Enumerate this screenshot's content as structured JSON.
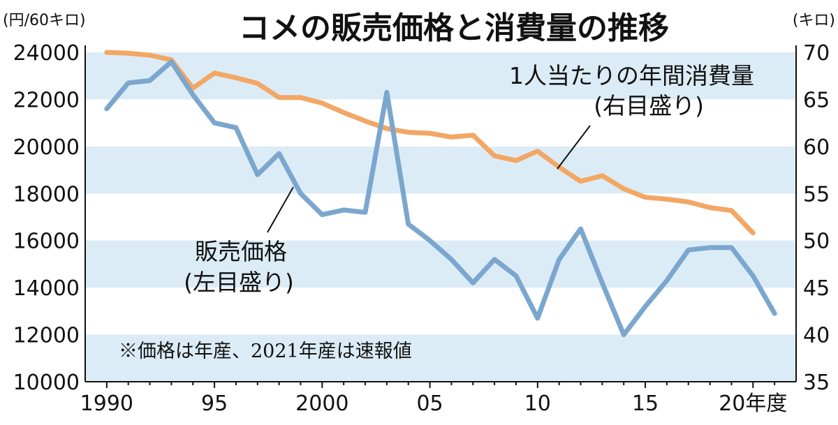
{
  "chart_data": {
    "type": "line",
    "title": "コメの販売価格と消費量の推移",
    "left_unit": "(円/60キロ)",
    "right_unit": "(キロ)",
    "x_tick_labels": [
      "1990",
      "95",
      "2000",
      "05",
      "10",
      "15",
      "20年度"
    ],
    "x_tick_values": [
      1990,
      1995,
      2000,
      2005,
      2010,
      2015,
      2020
    ],
    "xlim": [
      1989,
      2022
    ],
    "left_axis": {
      "ylim": [
        10000,
        24000
      ],
      "ticks": [
        "24000",
        "22000",
        "20000",
        "18000",
        "16000",
        "14000",
        "12000",
        "10000"
      ],
      "tick_values": [
        24000,
        22000,
        20000,
        18000,
        16000,
        14000,
        12000,
        10000
      ]
    },
    "right_axis": {
      "ylim": [
        35,
        70
      ],
      "ticks": [
        "70",
        "65",
        "60",
        "55",
        "50",
        "45",
        "40",
        "35"
      ],
      "tick_values": [
        70,
        65,
        60,
        55,
        50,
        45,
        40,
        35
      ]
    },
    "band_fill": "#dcecf6",
    "series": [
      {
        "name": "1人当たりの年間消費量",
        "axis": "right",
        "axis_label": "(右目盛り)",
        "color": "#f2a765",
        "x": [
          1990,
          1991,
          1992,
          1993,
          1994,
          1995,
          1996,
          1997,
          1998,
          1999,
          2000,
          2001,
          2002,
          2003,
          2004,
          2005,
          2006,
          2007,
          2008,
          2009,
          2010,
          2011,
          2012,
          2013,
          2014,
          2015,
          2016,
          2017,
          2018,
          2019,
          2020
        ],
        "values": [
          70.0,
          69.9,
          69.7,
          69.2,
          66.2,
          67.8,
          67.3,
          66.7,
          65.2,
          65.2,
          64.6,
          63.6,
          62.7,
          61.9,
          61.5,
          61.4,
          61.0,
          61.2,
          59.0,
          58.5,
          59.5,
          57.8,
          56.3,
          56.9,
          55.5,
          54.6,
          54.4,
          54.1,
          53.5,
          53.2,
          50.8
        ]
      },
      {
        "name": "販売価格",
        "axis": "left",
        "axis_label": "(左目盛り)",
        "color": "#7ba7cf",
        "x": [
          1990,
          1991,
          1992,
          1993,
          1994,
          1995,
          1996,
          1997,
          1998,
          1999,
          2000,
          2001,
          2002,
          2003,
          2004,
          2005,
          2006,
          2007,
          2008,
          2009,
          2010,
          2011,
          2012,
          2013,
          2014,
          2015,
          2016,
          2017,
          2018,
          2019,
          2020,
          2021
        ],
        "values": [
          21600,
          22700,
          22800,
          23600,
          22200,
          21000,
          20800,
          18800,
          19700,
          18000,
          17100,
          17300,
          17200,
          22300,
          16700,
          16000,
          15200,
          14200,
          15200,
          14500,
          12700,
          15200,
          16500,
          14200,
          12000,
          13200,
          14300,
          15600,
          15700,
          15700,
          14500,
          12900
        ]
      }
    ],
    "note": "※価格は年産、2021年産は速報値"
  }
}
